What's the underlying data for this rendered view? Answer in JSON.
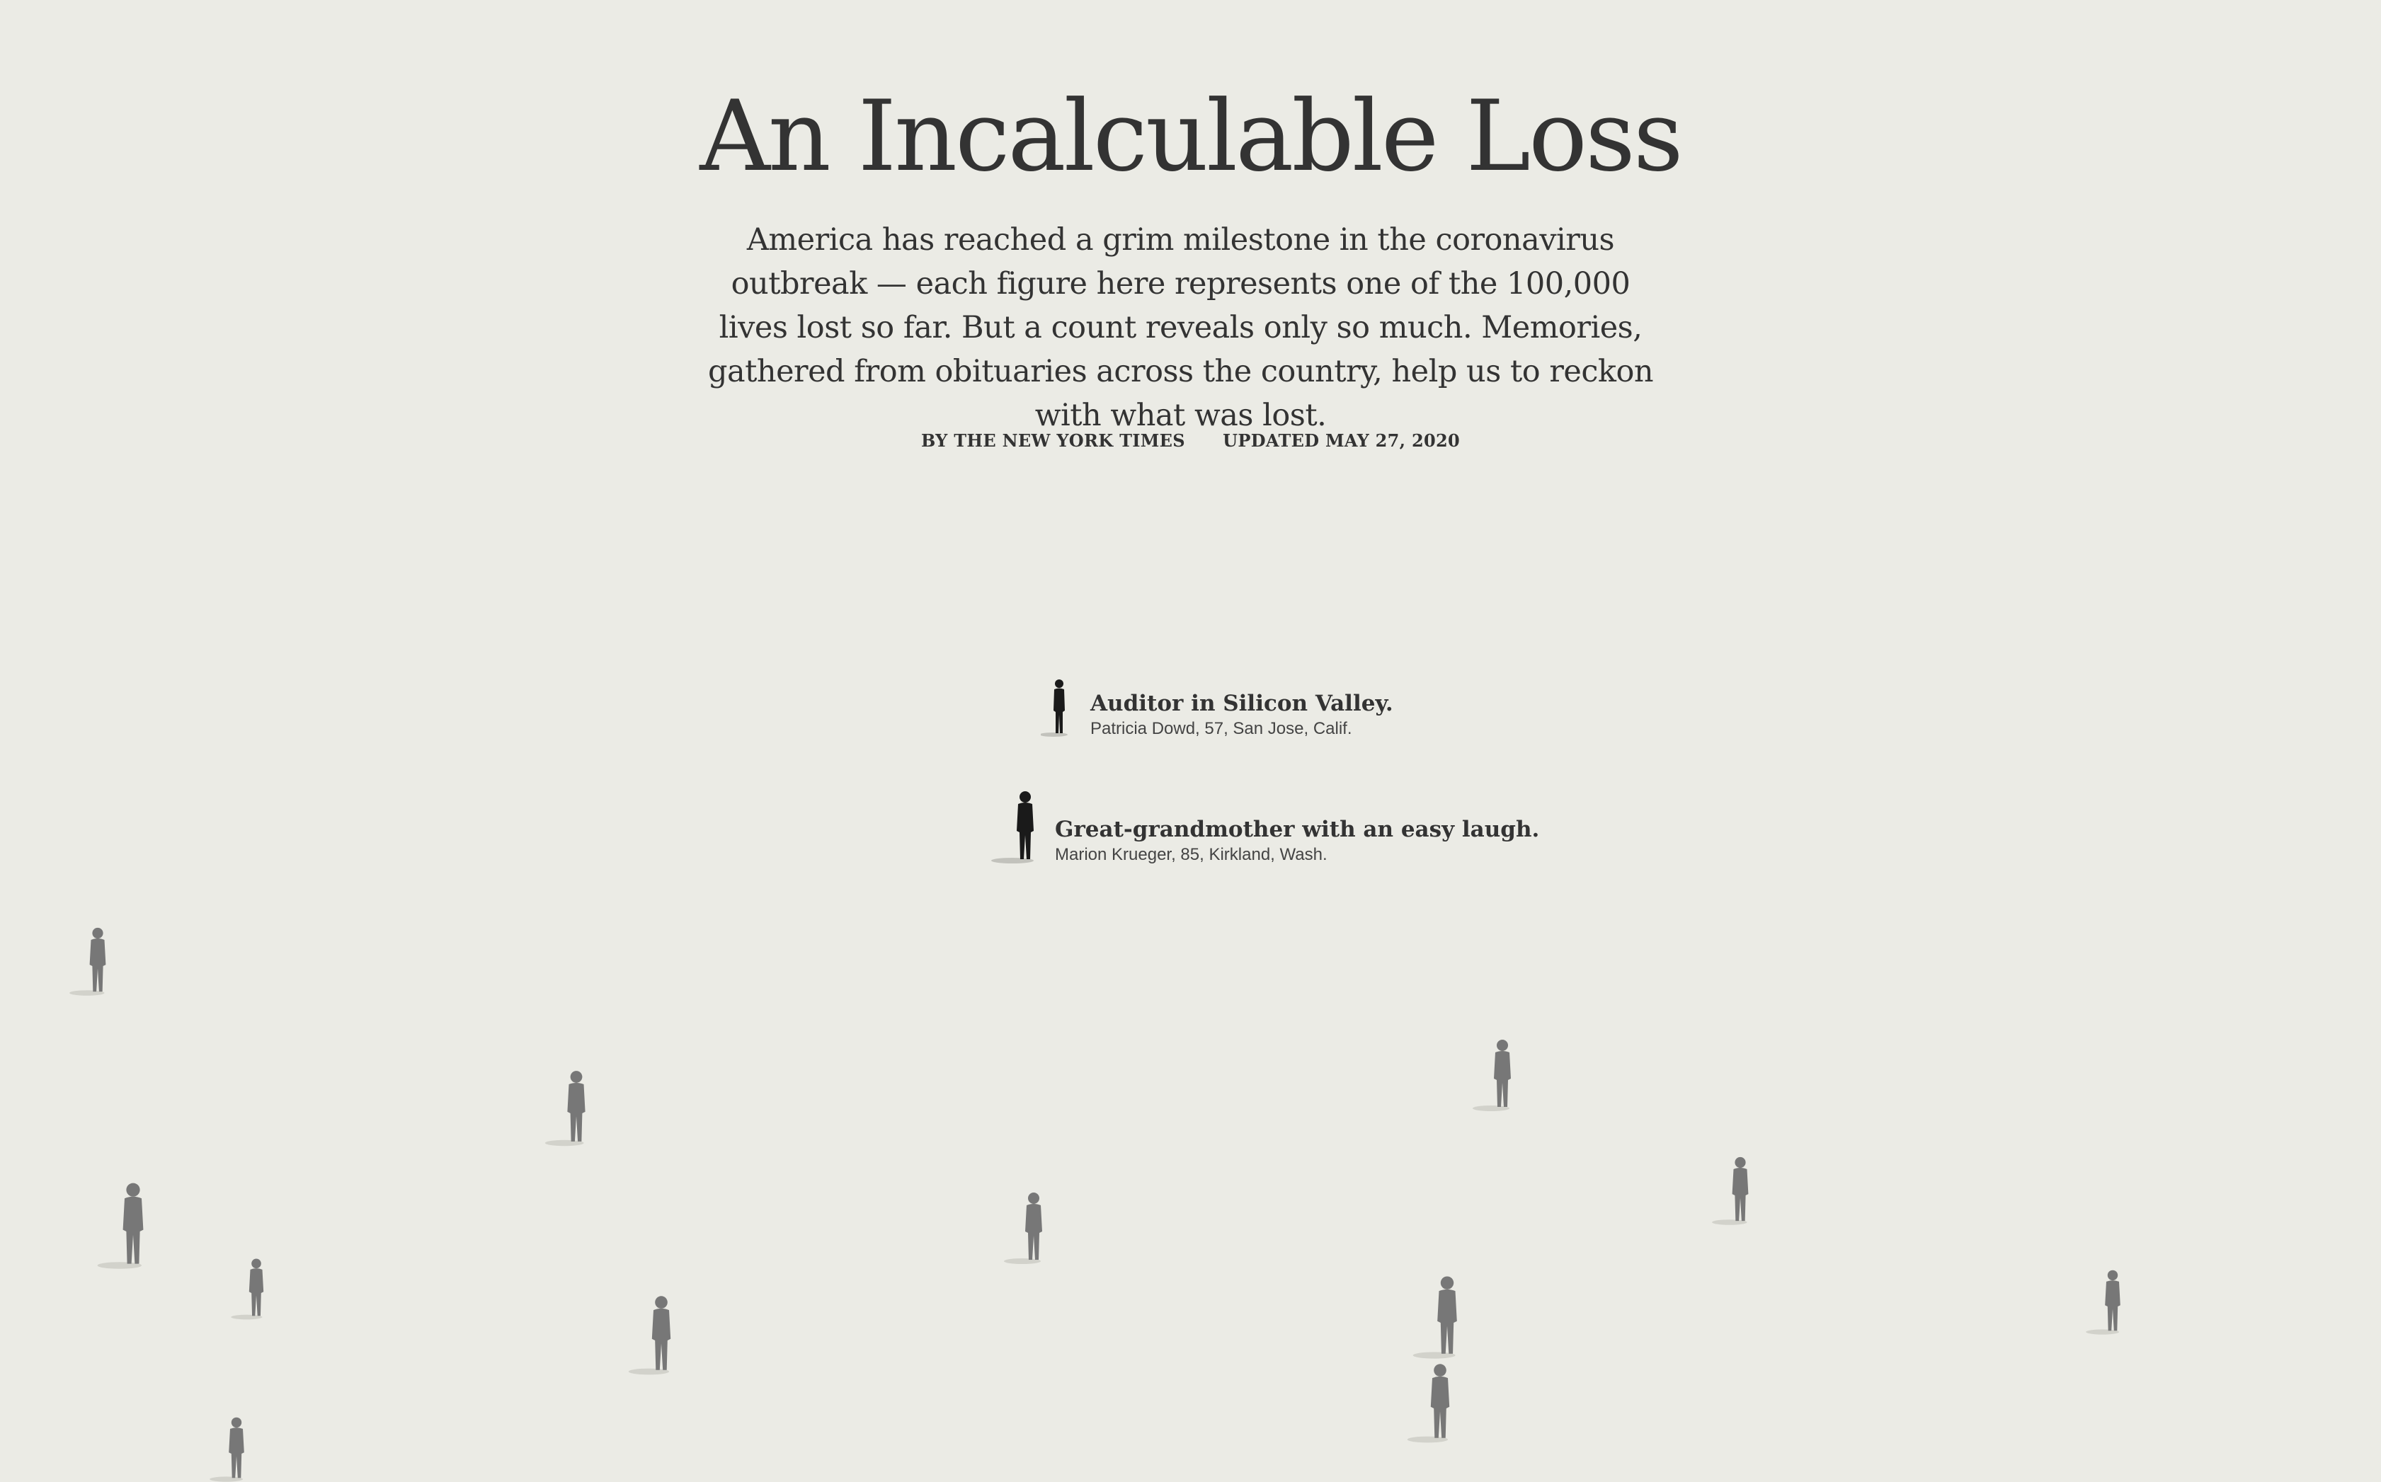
{
  "article": {
    "headline": "An Incalculable Loss",
    "dek": "America has reached a grim milestone in the coronavirus outbreak — each figure here represents one of the 100,000 lives lost so far. But a count reveals only so much. Memories, gathered from obituaries across the country, help us to reckon with what was lost.",
    "byline": "BY THE NEW YORK TIMES",
    "updated": "UPDATED MAY 27, 2020"
  },
  "memories": [
    {
      "title": "Auditor in Silicon Valley.",
      "subtitle": "Patricia Dowd, 57, San Jose, Calif."
    },
    {
      "title": "Great-grandmother with an easy laugh.",
      "subtitle": "Marion Krueger, 85, Kirkland, Wash."
    }
  ],
  "colors": {
    "background": "#ebebe5",
    "text": "#333333",
    "highlighted_figure": "#1a1a1a",
    "faded_figure": "#777777"
  },
  "icons": [
    "person-figure-icon"
  ]
}
